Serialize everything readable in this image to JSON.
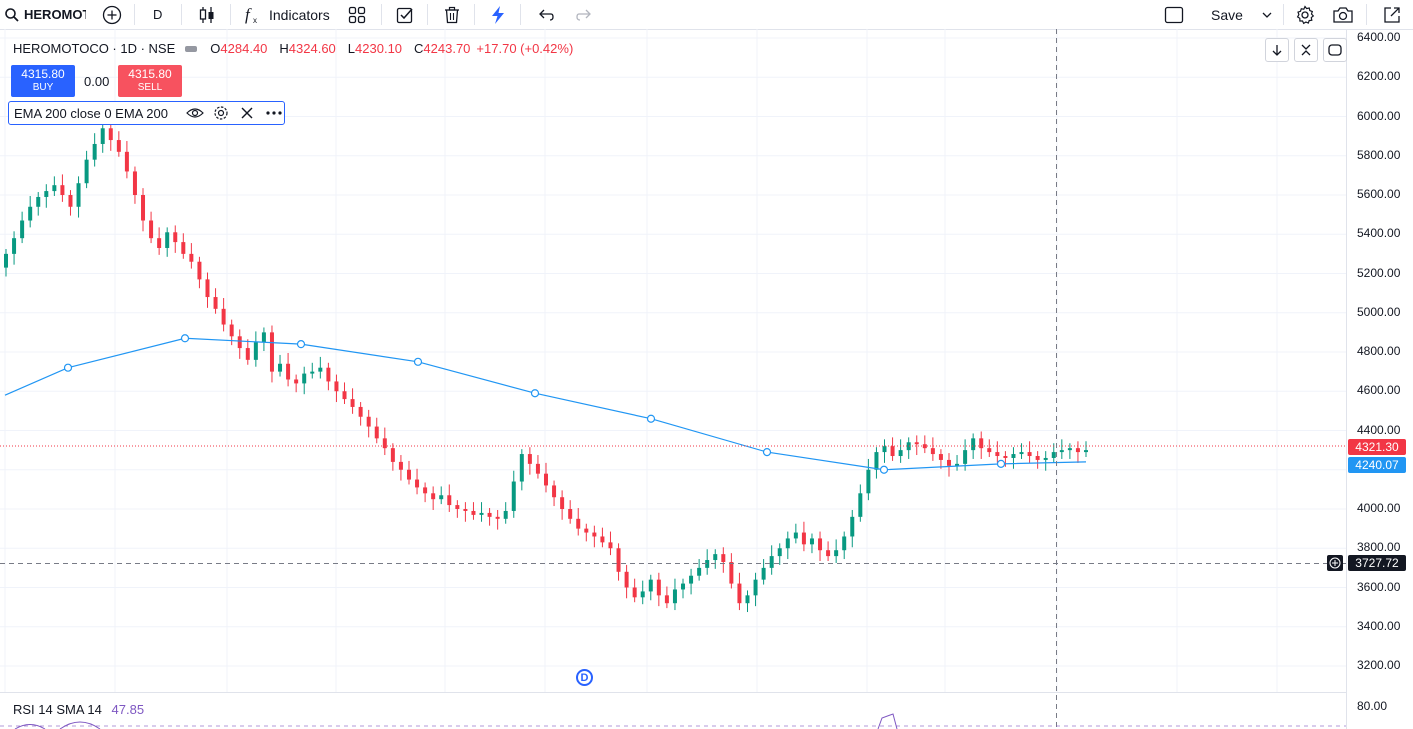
{
  "toolbar": {
    "symbol": "HEROMOTOCO",
    "interval": "D",
    "indicators_label": "Indicators",
    "save_label": "Save"
  },
  "legend": {
    "title": "HEROMOTOCO · 1D · NSE",
    "open_key": "O",
    "open": "4284.40",
    "high_key": "H",
    "high": "4324.60",
    "low_key": "L",
    "low": "4230.10",
    "close_key": "C",
    "close": "4243.70",
    "change": "+17.70 (+0.42%)"
  },
  "trade": {
    "buy_price": "4315.80",
    "buy_label": "BUY",
    "spread": "0.00",
    "sell_price": "4315.80",
    "sell_label": "SELL"
  },
  "ema": {
    "label": "EMA 200 close 0 EMA 200"
  },
  "rsi": {
    "label": "RSI 14 SMA 14",
    "value": "47.85"
  },
  "price_tags": {
    "last": "4321.30",
    "ema": "4240.07",
    "crosshair": "3727.72"
  },
  "marker": {
    "label": "D"
  },
  "colors": {
    "up": "#089981",
    "down": "#f23645",
    "ema": "#2196f3",
    "accent": "#2962ff",
    "rsi": "#7e57c2"
  },
  "chart_data": {
    "type": "candlestick",
    "y_axis_ticks": [
      "6400.00",
      "6200.00",
      "6000.00",
      "5800.00",
      "5600.00",
      "5400.00",
      "5200.00",
      "5000.00",
      "4800.00",
      "4600.00",
      "4400.00",
      "4200.00",
      "4000.00",
      "3800.00",
      "3600.00",
      "3400.00",
      "3200.00"
    ],
    "rsi_axis_ticks": [
      "80.00"
    ],
    "ylim": [
      3110,
      6440
    ],
    "close": [
      5300,
      5380,
      5470,
      5540,
      5590,
      5620,
      5650,
      5600,
      5540,
      5660,
      5780,
      5860,
      5940,
      5880,
      5820,
      5720,
      5600,
      5470,
      5380,
      5330,
      5410,
      5360,
      5300,
      5260,
      5170,
      5080,
      5020,
      4940,
      4880,
      4820,
      4760,
      4850,
      4900,
      4700,
      4740,
      4660,
      4640,
      4690,
      4700,
      4720,
      4650,
      4600,
      4560,
      4520,
      4470,
      4420,
      4360,
      4310,
      4240,
      4200,
      4150,
      4110,
      4080,
      4050,
      4070,
      4020,
      4000,
      3990,
      3970,
      3980,
      3960,
      3950,
      3990,
      4140,
      4280,
      4230,
      4180,
      4120,
      4060,
      4000,
      3950,
      3900,
      3880,
      3860,
      3830,
      3800,
      3680,
      3600,
      3550,
      3580,
      3640,
      3560,
      3520,
      3590,
      3620,
      3660,
      3700,
      3740,
      3770,
      3730,
      3620,
      3520,
      3560,
      3640,
      3700,
      3760,
      3800,
      3850,
      3880,
      3820,
      3850,
      3790,
      3760,
      3790,
      3860,
      3960,
      4080,
      4200,
      4290,
      4320,
      4270,
      4300,
      4340,
      4330,
      4310,
      4280,
      4250,
      4220,
      4230,
      4300,
      4360,
      4310,
      4290,
      4270,
      4260,
      4280,
      4290,
      4270,
      4250,
      4260,
      4290,
      4300,
      4310,
      4290,
      4300
    ],
    "ema200": [
      4580,
      4720,
      4870,
      4840,
      4750,
      4590,
      4460,
      4290,
      4200,
      4230,
      4240
    ]
  }
}
